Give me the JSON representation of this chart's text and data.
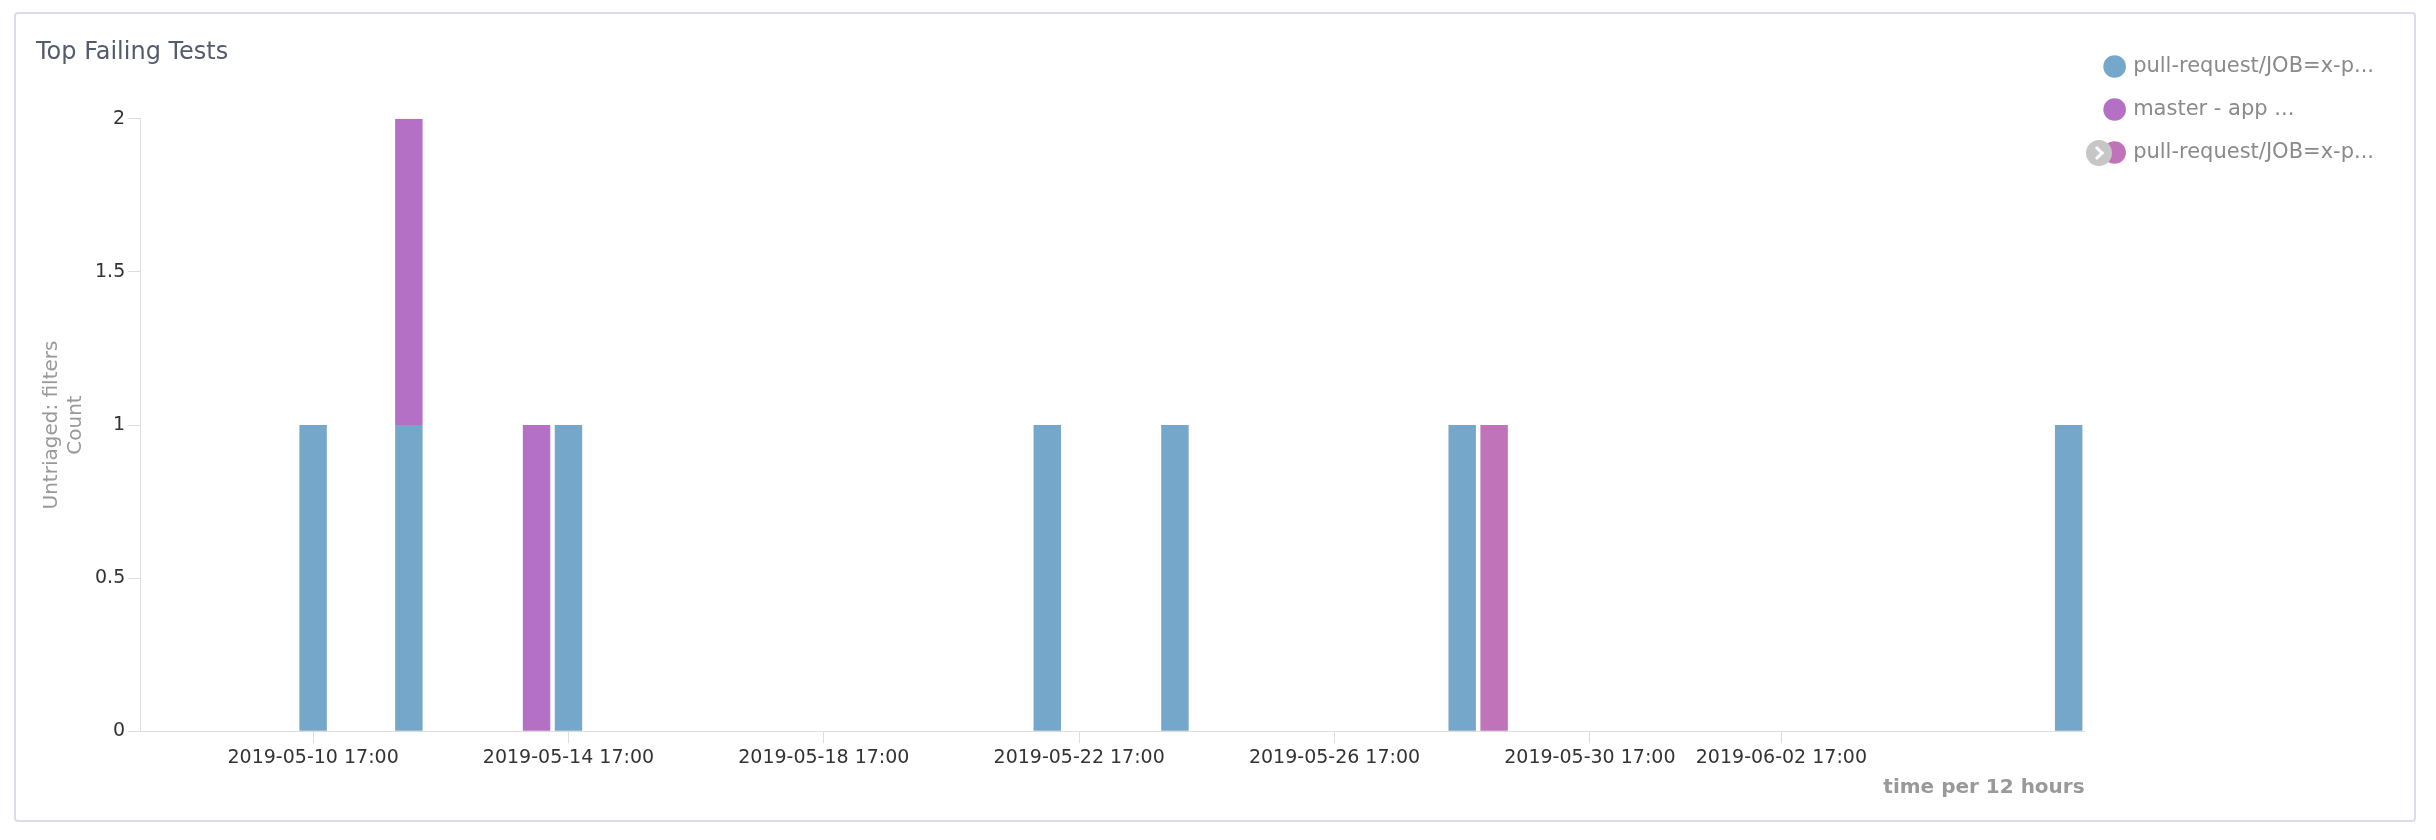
{
  "chart_data": {
    "type": "bar",
    "title": "Top Failing Tests",
    "xlabel": "time per 12 hours",
    "ylabel": "Untriaged: filters\nCount",
    "stacked": true,
    "series": [
      {
        "name": "pull-request/JOB=x-p...",
        "color": "#75a7ca",
        "values": [
          1,
          1,
          null,
          1,
          1,
          1,
          1,
          null,
          1
        ]
      },
      {
        "name": "master - app ...",
        "color": "#b370c5",
        "values": [
          null,
          1,
          1,
          null,
          null,
          null,
          null,
          null,
          null
        ]
      },
      {
        "name": "pull-request/JOB=x-p...",
        "color": "#c073b9",
        "values": [
          null,
          null,
          null,
          null,
          null,
          null,
          null,
          1,
          null
        ]
      }
    ],
    "x": [
      "2019-05-10T17:00",
      "2019-05-12T05:00",
      "2019-05-14T05:00",
      "2019-05-14T17:00",
      "2019-05-22T05:00",
      "2019-05-24T05:00",
      "2019-05-28T17:00",
      "2019-05-29T05:00",
      "2019-06-07T05:00"
    ],
    "xlim": [
      "2019-05-08T00:00",
      "2019-06-07T11:00"
    ],
    "xticks": [
      {
        "value": "2019-05-10T17:00",
        "label": "2019-05-10 17:00"
      },
      {
        "value": "2019-05-14T17:00",
        "label": "2019-05-14 17:00"
      },
      {
        "value": "2019-05-18T17:00",
        "label": "2019-05-18 17:00"
      },
      {
        "value": "2019-05-22T17:00",
        "label": "2019-05-22 17:00"
      },
      {
        "value": "2019-05-26T17:00",
        "label": "2019-05-26 17:00"
      },
      {
        "value": "2019-05-30T17:00",
        "label": "2019-05-30 17:00"
      },
      {
        "value": "2019-06-02T17:00",
        "label": "2019-06-02 17:00"
      }
    ],
    "ylim": [
      0,
      2
    ],
    "yticks": [
      0,
      0.5,
      1,
      1.5,
      2
    ],
    "grid": false,
    "legend": "top right"
  }
}
